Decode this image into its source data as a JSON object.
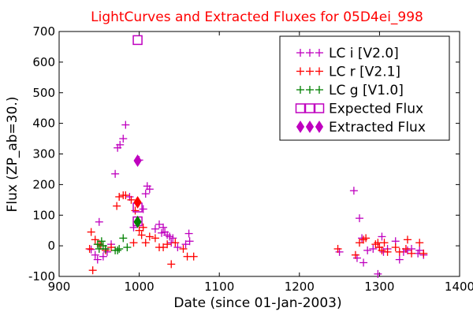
{
  "chart_data": {
    "type": "scatter",
    "title": "LightCurves and Extracted Fluxes for 05D4ei_998",
    "xlabel": "Date (since 01-Jan-2003)",
    "ylabel": "Flux (ZP_ab=30.)",
    "xlim": [
      900,
      1400
    ],
    "ylim": [
      -100,
      700
    ],
    "xticks": [
      900,
      1000,
      1100,
      1200,
      1300,
      1400
    ],
    "yticks": [
      -100,
      0,
      100,
      200,
      300,
      400,
      500,
      600,
      700
    ],
    "grid": false,
    "legend_position": "top-right",
    "series": [
      {
        "name": "LC i [V2.0]",
        "marker": "plus",
        "color": "#bf00bf",
        "points": [
          [
            940,
            -12
          ],
          [
            945,
            -30
          ],
          [
            948,
            -45
          ],
          [
            950,
            78
          ],
          [
            955,
            -35
          ],
          [
            960,
            -20
          ],
          [
            965,
            5
          ],
          [
            970,
            235
          ],
          [
            973,
            320
          ],
          [
            976,
            330
          ],
          [
            980,
            350
          ],
          [
            983,
            395
          ],
          [
            988,
            160
          ],
          [
            993,
            60
          ],
          [
            1000,
            280
          ],
          [
            1005,
            120
          ],
          [
            1008,
            170
          ],
          [
            1010,
            195
          ],
          [
            1013,
            185
          ],
          [
            1020,
            55
          ],
          [
            1025,
            70
          ],
          [
            1028,
            42
          ],
          [
            1030,
            60
          ],
          [
            1032,
            45
          ],
          [
            1035,
            35
          ],
          [
            1038,
            30
          ],
          [
            1040,
            10
          ],
          [
            1042,
            25
          ],
          [
            1048,
            -5
          ],
          [
            1058,
            5
          ],
          [
            1062,
            40
          ],
          [
            1063,
            15
          ],
          [
            1250,
            -20
          ],
          [
            1268,
            180
          ],
          [
            1272,
            -40
          ],
          [
            1275,
            90
          ],
          [
            1278,
            25
          ],
          [
            1280,
            -55
          ],
          [
            1285,
            -15
          ],
          [
            1292,
            -10
          ],
          [
            1298,
            -92
          ],
          [
            1300,
            -5
          ],
          [
            1303,
            30
          ],
          [
            1305,
            -20
          ],
          [
            1310,
            -10
          ],
          [
            1320,
            15
          ],
          [
            1325,
            -45
          ],
          [
            1330,
            -20
          ],
          [
            1335,
            -15
          ],
          [
            1340,
            -10
          ],
          [
            1348,
            -25
          ],
          [
            1350,
            -15
          ],
          [
            1355,
            -30
          ]
        ]
      },
      {
        "name": "LC r [V2.1]",
        "marker": "plus",
        "color": "#ff0000",
        "points": [
          [
            938,
            -10
          ],
          [
            940,
            45
          ],
          [
            942,
            -80
          ],
          [
            945,
            20
          ],
          [
            950,
            5
          ],
          [
            952,
            0
          ],
          [
            958,
            -15
          ],
          [
            965,
            -5
          ],
          [
            972,
            130
          ],
          [
            975,
            160
          ],
          [
            980,
            165
          ],
          [
            983,
            165
          ],
          [
            990,
            150
          ],
          [
            993,
            10
          ],
          [
            995,
            115
          ],
          [
            1000,
            50
          ],
          [
            1003,
            35
          ],
          [
            1005,
            60
          ],
          [
            1008,
            10
          ],
          [
            1013,
            30
          ],
          [
            1020,
            25
          ],
          [
            1025,
            -5
          ],
          [
            1030,
            -5
          ],
          [
            1035,
            5
          ],
          [
            1040,
            -60
          ],
          [
            1045,
            10
          ],
          [
            1055,
            -10
          ],
          [
            1060,
            -35
          ],
          [
            1068,
            -35
          ],
          [
            1248,
            -10
          ],
          [
            1270,
            -30
          ],
          [
            1275,
            10
          ],
          [
            1280,
            20
          ],
          [
            1283,
            25
          ],
          [
            1295,
            5
          ],
          [
            1298,
            10
          ],
          [
            1300,
            -5
          ],
          [
            1303,
            -15
          ],
          [
            1306,
            10
          ],
          [
            1310,
            -20
          ],
          [
            1320,
            -5
          ],
          [
            1325,
            -20
          ],
          [
            1333,
            -10
          ],
          [
            1335,
            20
          ],
          [
            1340,
            -25
          ],
          [
            1350,
            10
          ],
          [
            1355,
            -25
          ]
        ]
      },
      {
        "name": "LC g [V1.0]",
        "marker": "plus",
        "color": "#008000",
        "points": [
          [
            948,
            5
          ],
          [
            950,
            -10
          ],
          [
            953,
            15
          ],
          [
            955,
            0
          ],
          [
            958,
            -10
          ],
          [
            970,
            -15
          ],
          [
            973,
            -15
          ],
          [
            975,
            -10
          ],
          [
            980,
            25
          ],
          [
            985,
            -5
          ]
        ]
      },
      {
        "name": "Expected Flux",
        "marker": "square",
        "color": "#bf00bf",
        "points": [
          [
            998,
            672
          ],
          [
            998,
            125
          ],
          [
            998,
            80
          ]
        ]
      },
      {
        "name": "Extracted Flux",
        "marker": "diamond",
        "color": "#bf00bf",
        "points": [
          [
            998,
            278
          ],
          [
            998,
            142
          ],
          [
            998,
            78
          ]
        ],
        "point_colors": [
          "#bf00bf",
          "#ff0000",
          "#008000"
        ]
      }
    ]
  }
}
